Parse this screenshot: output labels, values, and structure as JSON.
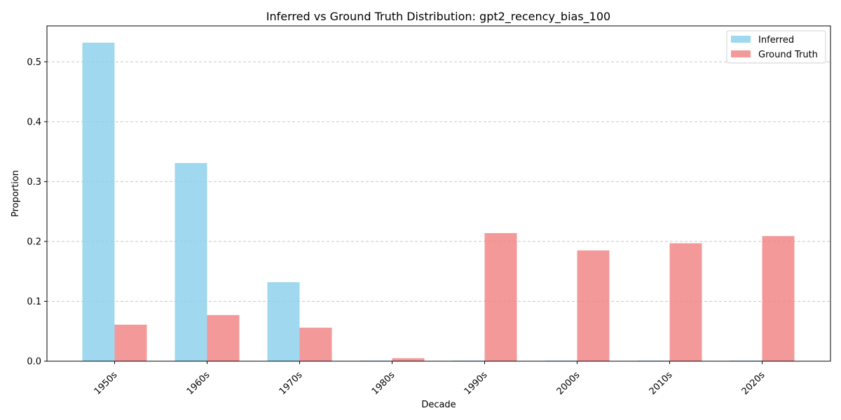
{
  "chart_data": {
    "type": "bar",
    "title": "Inferred vs Ground Truth Distribution: gpt2_recency_bias_100",
    "xlabel": "Decade",
    "ylabel": "Proportion",
    "categories": [
      "1950s",
      "1960s",
      "1970s",
      "1980s",
      "1990s",
      "2000s",
      "2010s",
      "2020s"
    ],
    "series": [
      {
        "name": "Inferred",
        "color": "#87CEEB",
        "values": [
          0.532,
          0.331,
          0.132,
          0.001,
          0.001,
          0.001,
          0.001,
          0.001
        ]
      },
      {
        "name": "Ground Truth",
        "color": "#F08080",
        "values": [
          0.061,
          0.077,
          0.056,
          0.005,
          0.214,
          0.185,
          0.197,
          0.209
        ]
      }
    ],
    "ylim": [
      0,
      0.56
    ],
    "yticks": [
      "0.0",
      "0.1",
      "0.2",
      "0.3",
      "0.4",
      "0.5"
    ],
    "grid": "horizontal-dashed",
    "legend_position": "top-right"
  }
}
